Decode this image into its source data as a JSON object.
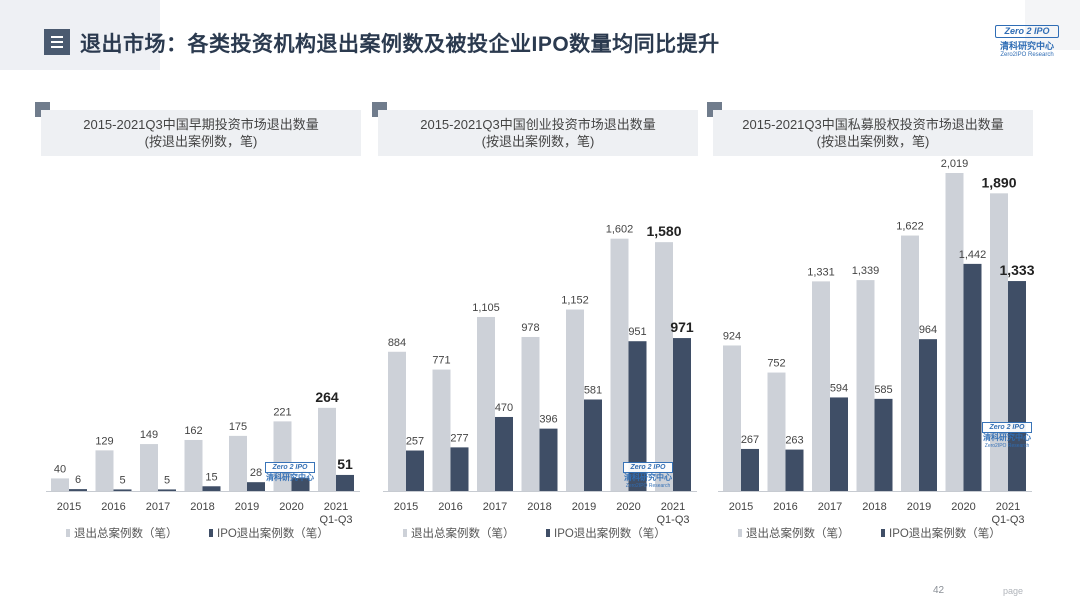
{
  "title": "退出市场：各类投资机构退出案例数及被投企业IPO数量均同比提升",
  "logo": {
    "top": "Zero 2 IPO",
    "cn": "清科研究中心",
    "en": "Zero2IPO Research"
  },
  "footer": {
    "page_number": "42",
    "page_word": "page"
  },
  "colors": {
    "total": "#cdd1d8",
    "ipo": "#3f4e66",
    "header_bg": "#eef0f3"
  },
  "chart_data": [
    {
      "type": "bar",
      "title": "2015-2021Q3中国早期投资市场退出数量",
      "subtitle": "(按退出案例数，笔)",
      "categories": [
        "2015",
        "2016",
        "2017",
        "2018",
        "2019",
        "2020",
        "2021"
      ],
      "category_sublabels": [
        "",
        "",
        "",
        "",
        "",
        "",
        "Q1-Q3"
      ],
      "series": [
        {
          "name": "退出总案例数（笔）",
          "values": [
            40,
            129,
            149,
            162,
            175,
            221,
            264
          ],
          "labels": [
            "40",
            "129",
            "149",
            "162",
            "175",
            "221",
            "264"
          ]
        },
        {
          "name": "IPO退出案例数（笔）",
          "values": [
            6,
            5,
            5,
            15,
            28,
            41,
            51
          ],
          "labels": [
            "6",
            "5",
            "5",
            "15",
            "28",
            "41",
            "51"
          ]
        }
      ],
      "ylim": [
        0,
        1000
      ],
      "highlight_last": true
    },
    {
      "type": "bar",
      "title": "2015-2021Q3中国创业投资市场退出数量",
      "subtitle": "(按退出案例数，笔)",
      "categories": [
        "2015",
        "2016",
        "2017",
        "2018",
        "2019",
        "2020",
        "2021"
      ],
      "category_sublabels": [
        "",
        "",
        "",
        "",
        "",
        "",
        "Q1-Q3"
      ],
      "series": [
        {
          "name": "退出总案例数（笔）",
          "values": [
            884,
            771,
            1105,
            978,
            1152,
            1602,
            1580
          ],
          "labels": [
            "884",
            "771",
            "1,105",
            "978",
            "1,152",
            "1,602",
            "1,580"
          ]
        },
        {
          "name": "IPO退出案例数（笔）",
          "values": [
            257,
            277,
            470,
            396,
            581,
            951,
            971
          ],
          "labels": [
            "257",
            "277",
            "470",
            "396",
            "581",
            "951",
            "971"
          ]
        }
      ],
      "ylim": [
        0,
        2000
      ],
      "highlight_last": true
    },
    {
      "type": "bar",
      "title": "2015-2021Q3中国私募股权投资市场退出数量",
      "subtitle": "(按退出案例数，笔)",
      "categories": [
        "2015",
        "2016",
        "2017",
        "2018",
        "2019",
        "2020",
        "2021"
      ],
      "category_sublabels": [
        "",
        "",
        "",
        "",
        "",
        "",
        "Q1-Q3"
      ],
      "series": [
        {
          "name": "退出总案例数（笔）",
          "values": [
            924,
            752,
            1331,
            1339,
            1622,
            2019,
            1890
          ],
          "labels": [
            "924",
            "752",
            "1,331",
            "1,339",
            "1,622",
            "2,019",
            "1,890"
          ]
        },
        {
          "name": "IPO退出案例数（笔）",
          "values": [
            267,
            263,
            594,
            585,
            964,
            1442,
            1333
          ],
          "labels": [
            "267",
            "263",
            "594",
            "585",
            "964",
            "1,442",
            "1,333"
          ]
        }
      ],
      "ylim": [
        0,
        2000
      ],
      "highlight_last": true
    }
  ]
}
